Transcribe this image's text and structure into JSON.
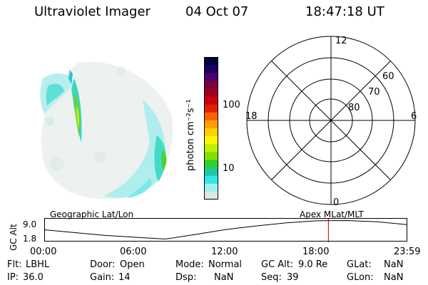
{
  "header": {
    "instrument": "Ultraviolet Imager",
    "date": "04 Oct 07",
    "time": "18:47:18 UT"
  },
  "colorbar": {
    "unit_label": "photon cm⁻²s⁻¹",
    "ticks": [
      "100",
      "10"
    ],
    "colors": [
      "#000040",
      "#1a0060",
      "#4a0070",
      "#7a0040",
      "#a00020",
      "#c80010",
      "#e02000",
      "#ff6000",
      "#ffa000",
      "#ffd000",
      "#f8f800",
      "#c0f000",
      "#80e000",
      "#30d030",
      "#20c8a0",
      "#30e8e8",
      "#a0f0f0",
      "#d8e8e8"
    ]
  },
  "polar": {
    "mlt_labels": {
      "top": "12",
      "left": "18",
      "right": "6",
      "bottom": "0"
    },
    "lat_labels": [
      "60",
      "70",
      "80"
    ]
  },
  "timeline": {
    "y_axis_title": "GC Alt",
    "y_ticks": [
      "9.0",
      "1.8"
    ],
    "left_title": "Geographic Lat/Lon",
    "right_title": "Apex MLat/MLT",
    "x_ticks": [
      "00:00",
      "06:00",
      "12:00",
      "18:00",
      "23:59"
    ],
    "altitude_profile": [
      {
        "t": "00:00",
        "alt": 5.4
      },
      {
        "t": "02:00",
        "alt": 4.3
      },
      {
        "t": "04:00",
        "alt": 3.2
      },
      {
        "t": "06:00",
        "alt": 2.5
      },
      {
        "t": "08:00",
        "alt": 1.8
      },
      {
        "t": "10:00",
        "alt": 3.6
      },
      {
        "t": "12:00",
        "alt": 5.5
      },
      {
        "t": "14:00",
        "alt": 6.9
      },
      {
        "t": "16:00",
        "alt": 8.1
      },
      {
        "t": "18:00",
        "alt": 8.9
      },
      {
        "t": "20:00",
        "alt": 9.0
      },
      {
        "t": "22:00",
        "alt": 8.5
      },
      {
        "t": "23:59",
        "alt": 7.4
      }
    ],
    "current_time_marker": "18:47",
    "marker_color": "#b00000"
  },
  "status": {
    "row1": [
      {
        "key": "Flt:",
        "value": "LBHL"
      },
      {
        "key": "Door:",
        "value": "Open"
      },
      {
        "key": "Mode:",
        "value": "Normal"
      },
      {
        "key": "GC Alt:",
        "value": "9.0 Re"
      },
      {
        "key": "GLat:",
        "value": "NaN"
      }
    ],
    "row2": [
      {
        "key": "IP:",
        "value": "36.0"
      },
      {
        "key": "Gain:",
        "value": "14"
      },
      {
        "key": "Dsp:",
        "value": "NaN"
      },
      {
        "key": "Seq:",
        "value": "39"
      },
      {
        "key": "GLon:",
        "value": "NaN"
      }
    ]
  }
}
